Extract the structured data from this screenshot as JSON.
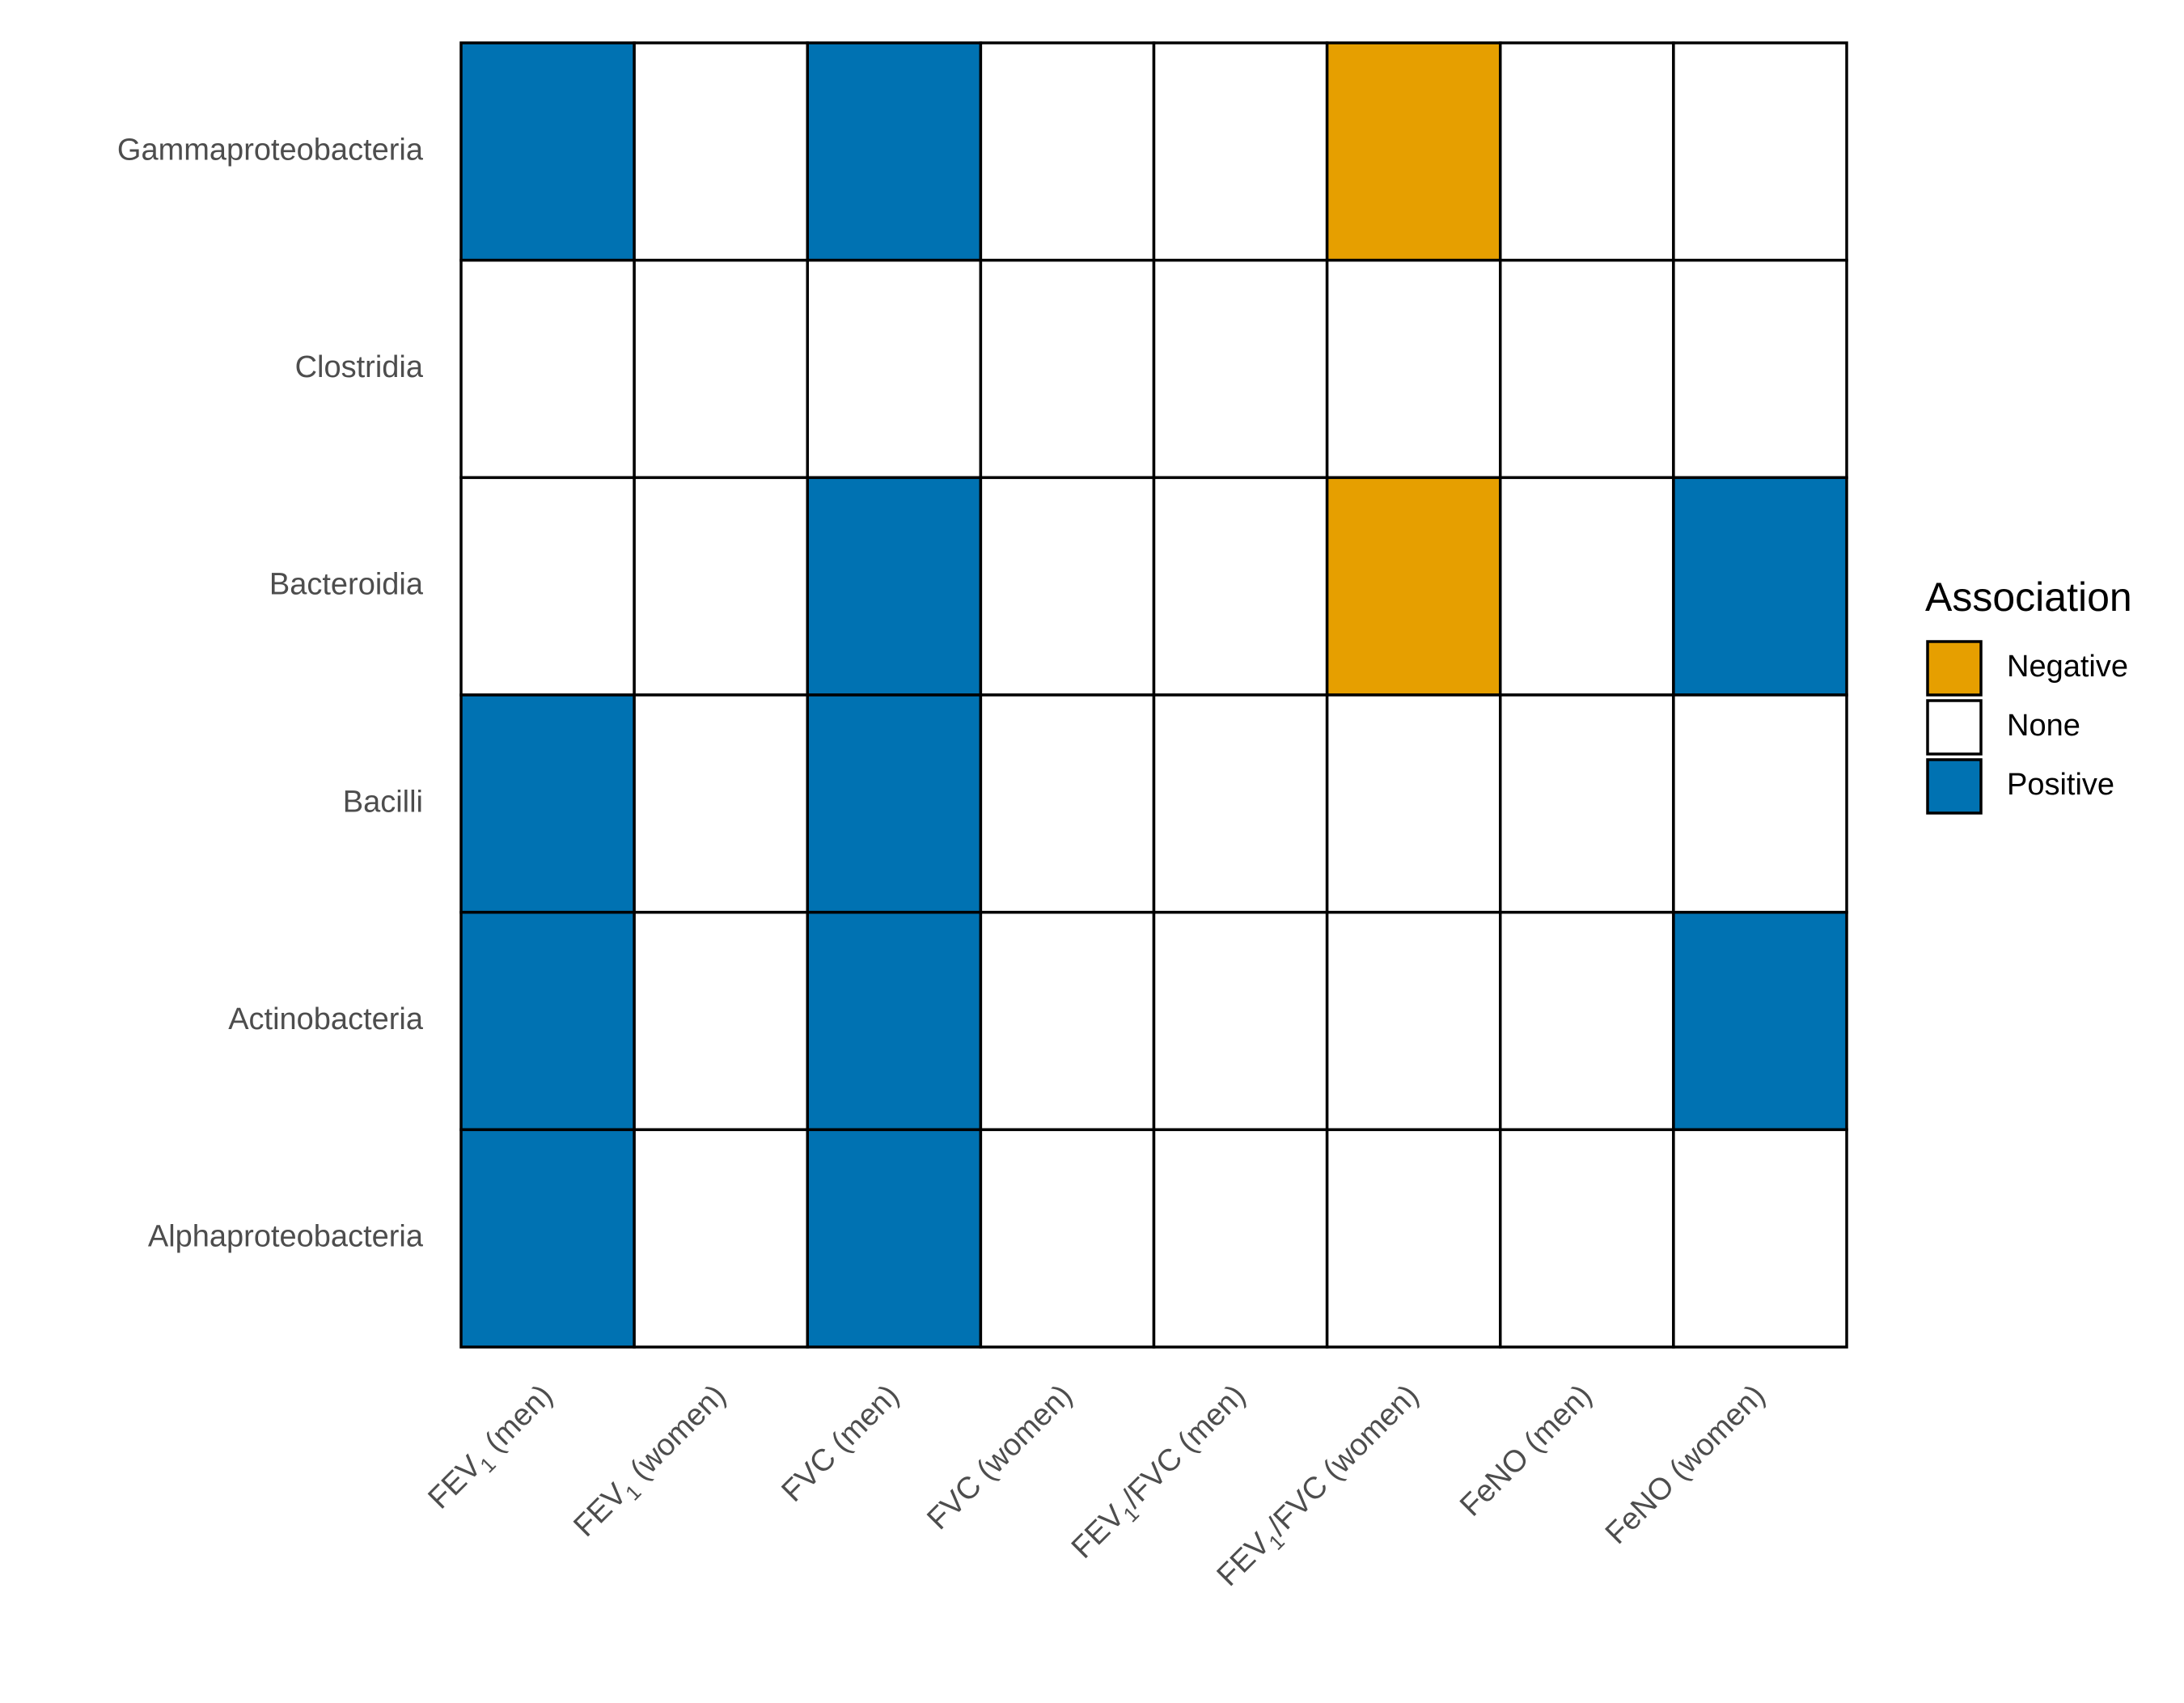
{
  "chart_data": {
    "type": "heatmap",
    "title": "",
    "xlabel": "",
    "ylabel": "",
    "x_categories": [
      {
        "base": "FEV",
        "sub": "1",
        "rest": " (men)"
      },
      {
        "base": "FEV",
        "sub": "1",
        "rest": " (women)"
      },
      {
        "base": "FVC (men)",
        "sub": "",
        "rest": ""
      },
      {
        "base": "FVC (women)",
        "sub": "",
        "rest": ""
      },
      {
        "base": "FEV",
        "sub": "1",
        "rest": "/FVC (men)"
      },
      {
        "base": "FEV",
        "sub": "1",
        "rest": "/FVC (women)"
      },
      {
        "base": "FeNO (men)",
        "sub": "",
        "rest": ""
      },
      {
        "base": "FeNO (women)",
        "sub": "",
        "rest": ""
      }
    ],
    "y_categories": [
      "Gammaproteobacteria",
      "Clostridia",
      "Bacteroidia",
      "Bacilli",
      "Actinobacteria",
      "Alphaproteobacteria"
    ],
    "values": [
      [
        "Positive",
        "None",
        "Positive",
        "None",
        "None",
        "Negative",
        "None",
        "None"
      ],
      [
        "None",
        "None",
        "None",
        "None",
        "None",
        "None",
        "None",
        "None"
      ],
      [
        "None",
        "None",
        "Positive",
        "None",
        "None",
        "Negative",
        "None",
        "Positive"
      ],
      [
        "Positive",
        "None",
        "Positive",
        "None",
        "None",
        "None",
        "None",
        "None"
      ],
      [
        "Positive",
        "None",
        "Positive",
        "None",
        "None",
        "None",
        "None",
        "Positive"
      ],
      [
        "Positive",
        "None",
        "Positive",
        "None",
        "None",
        "None",
        "None",
        "None"
      ]
    ],
    "legend": {
      "title": "Association",
      "placement": "right",
      "entries": [
        {
          "label": "Negative",
          "color": "#E69F00"
        },
        {
          "label": "None",
          "color": "#FFFFFF"
        },
        {
          "label": "Positive",
          "color": "#0072B2"
        }
      ]
    },
    "cell_border_color": "#000000",
    "grid": false
  }
}
